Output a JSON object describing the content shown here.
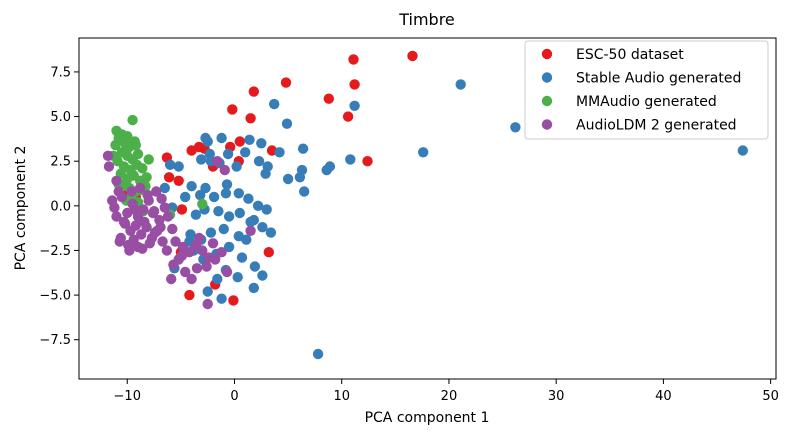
{
  "chart_data": {
    "type": "scatter",
    "title": "Timbre",
    "xlabel": "PCA component 1",
    "ylabel": "PCA component 2",
    "xlim": [
      -14.5,
      50.5
    ],
    "ylim": [
      -9.7,
      9.4
    ],
    "xticks": [
      -10,
      0,
      10,
      20,
      30,
      40,
      50
    ],
    "yticks": [
      -7.5,
      -5.0,
      -2.5,
      0.0,
      2.5,
      5.0,
      7.5
    ],
    "xtick_labels": [
      "−10",
      "0",
      "10",
      "20",
      "30",
      "40",
      "50"
    ],
    "ytick_labels": [
      "−7.5",
      "−5.0",
      "−2.5",
      "0.0",
      "2.5",
      "5.0",
      "7.5"
    ],
    "grid": false,
    "legend_position": "top-right",
    "series": [
      {
        "name": "ESC-50 dataset",
        "color": "#e41a1c",
        "points": [
          [
            16.6,
            8.4
          ],
          [
            11.1,
            8.2
          ],
          [
            11.2,
            6.8
          ],
          [
            4.8,
            6.9
          ],
          [
            1.8,
            6.4
          ],
          [
            8.8,
            6.0
          ],
          [
            -0.2,
            5.4
          ],
          [
            10.6,
            5.0
          ],
          [
            12.4,
            2.5
          ],
          [
            1.5,
            4.9
          ],
          [
            3.5,
            3.1
          ],
          [
            -0.4,
            3.3
          ],
          [
            -2.8,
            3.2
          ],
          [
            -4.0,
            3.1
          ],
          [
            -3.3,
            3.3
          ],
          [
            0.5,
            3.6
          ],
          [
            0.4,
            2.5
          ],
          [
            -2.0,
            2.2
          ],
          [
            -6.3,
            2.7
          ],
          [
            -6.1,
            1.6
          ],
          [
            -5.2,
            1.4
          ],
          [
            -9.9,
            0.7
          ],
          [
            -4.9,
            -0.2
          ],
          [
            -5.0,
            -2.6
          ],
          [
            -9.2,
            0.5
          ],
          [
            3.2,
            -2.6
          ],
          [
            -1.8,
            -4.4
          ],
          [
            -0.1,
            -5.3
          ],
          [
            -4.2,
            -5.0
          ]
        ]
      },
      {
        "name": "Stable Audio generated",
        "color": "#377eb8",
        "points": [
          [
            47.4,
            3.1
          ],
          [
            26.2,
            4.4
          ],
          [
            21.1,
            6.8
          ],
          [
            17.6,
            3.0
          ],
          [
            11.2,
            5.6
          ],
          [
            10.8,
            2.6
          ],
          [
            8.9,
            2.2
          ],
          [
            8.6,
            2.0
          ],
          [
            6.4,
            3.2
          ],
          [
            6.3,
            2.0
          ],
          [
            7.8,
            -8.3
          ],
          [
            4.9,
            4.6
          ],
          [
            3.7,
            5.7
          ],
          [
            4.2,
            3.0
          ],
          [
            3.1,
            2.2
          ],
          [
            2.9,
            1.8
          ],
          [
            5.0,
            1.5
          ],
          [
            6.1,
            1.6
          ],
          [
            6.5,
            0.8
          ],
          [
            2.3,
            2.5
          ],
          [
            1.0,
            3.0
          ],
          [
            0.2,
            2.2
          ],
          [
            1.4,
            3.7
          ],
          [
            2.5,
            3.5
          ],
          [
            -1.2,
            3.8
          ],
          [
            -2.5,
            3.6
          ],
          [
            -0.6,
            2.9
          ],
          [
            -1.4,
            2.4
          ],
          [
            -2.2,
            2.5
          ],
          [
            -3.1,
            2.6
          ],
          [
            -0.7,
            1.2
          ],
          [
            0.4,
            0.7
          ],
          [
            1.3,
            0.4
          ],
          [
            2.2,
            0.0
          ],
          [
            3.0,
            -0.2
          ],
          [
            -0.8,
            0.7
          ],
          [
            -1.9,
            0.5
          ],
          [
            -2.7,
            1.0
          ],
          [
            -3.2,
            0.6
          ],
          [
            -4.0,
            1.1
          ],
          [
            -4.6,
            0.5
          ],
          [
            -3.6,
            -0.5
          ],
          [
            -2.8,
            -0.2
          ],
          [
            -1.5,
            -0.3
          ],
          [
            -0.5,
            -0.6
          ],
          [
            0.5,
            -0.4
          ],
          [
            1.5,
            -0.9
          ],
          [
            2.6,
            -1.2
          ],
          [
            3.4,
            -1.5
          ],
          [
            -1.0,
            -1.3
          ],
          [
            -2.2,
            -1.5
          ],
          [
            -3.1,
            -1.9
          ],
          [
            -4.1,
            -1.6
          ],
          [
            0.4,
            -1.7
          ],
          [
            1.1,
            -1.9
          ],
          [
            -0.5,
            -2.3
          ],
          [
            -1.7,
            -2.7
          ],
          [
            -2.9,
            -3.0
          ],
          [
            -3.8,
            -2.5
          ],
          [
            0.7,
            -2.9
          ],
          [
            1.9,
            -3.4
          ],
          [
            2.6,
            -3.9
          ],
          [
            -0.8,
            -3.6
          ],
          [
            -1.6,
            -4.1
          ],
          [
            0.3,
            -4.0
          ],
          [
            1.8,
            -4.6
          ],
          [
            -1.2,
            -5.2
          ],
          [
            -2.5,
            -4.8
          ],
          [
            -5.6,
            -3.5
          ],
          [
            -5.2,
            2.2
          ],
          [
            -6.0,
            2.3
          ],
          [
            -5.8,
            -0.1
          ],
          [
            -6.5,
            1.0
          ],
          [
            -2.3,
            2.9
          ],
          [
            -2.7,
            3.8
          ],
          [
            -4.2,
            -2.0
          ],
          [
            1.8,
            -0.8
          ]
        ]
      },
      {
        "name": "MMAudio generated",
        "color": "#4daf4a",
        "points": [
          [
            -11.0,
            4.2
          ],
          [
            -10.5,
            4.0
          ],
          [
            -9.5,
            4.8
          ],
          [
            -10.2,
            3.5
          ],
          [
            -10.8,
            3.8
          ],
          [
            -9.8,
            3.3
          ],
          [
            -9.2,
            3.4
          ],
          [
            -10.5,
            3.0
          ],
          [
            -10.0,
            2.8
          ],
          [
            -9.5,
            2.6
          ],
          [
            -9.0,
            2.9
          ],
          [
            -10.9,
            2.5
          ],
          [
            -10.3,
            2.2
          ],
          [
            -9.7,
            2.0
          ],
          [
            -9.1,
            2.3
          ],
          [
            -8.6,
            2.1
          ],
          [
            -10.6,
            1.8
          ],
          [
            -10.0,
            1.5
          ],
          [
            -9.4,
            1.7
          ],
          [
            -8.8,
            1.4
          ],
          [
            -8.2,
            1.6
          ],
          [
            -8.0,
            2.6
          ],
          [
            -10.4,
            1.2
          ],
          [
            -9.8,
            1.0
          ],
          [
            -9.2,
            0.8
          ],
          [
            -8.7,
            0.9
          ],
          [
            -10.1,
            0.3
          ],
          [
            -9.6,
            0.5
          ],
          [
            -11.3,
            2.8
          ],
          [
            -11.1,
            3.4
          ],
          [
            -10.0,
            3.9
          ],
          [
            -9.3,
            3.6
          ],
          [
            -8.3,
            1.1
          ],
          [
            -3.0,
            0.1
          ],
          [
            -8.5,
            -0.3
          ],
          [
            -6.0,
            -0.5
          ],
          [
            -9.0,
            0.2
          ],
          [
            -10.8,
            1.2
          ]
        ]
      },
      {
        "name": "AudioLDM 2 generated",
        "color": "#984ea3",
        "points": [
          [
            -11.8,
            2.8
          ],
          [
            -11.7,
            2.2
          ],
          [
            -11.0,
            1.4
          ],
          [
            -10.8,
            0.8
          ],
          [
            -11.2,
            -0.1
          ],
          [
            -10.5,
            0.5
          ],
          [
            -10.0,
            -0.4
          ],
          [
            -9.5,
            0.1
          ],
          [
            -9.0,
            -0.6
          ],
          [
            -8.5,
            -0.2
          ],
          [
            -8.0,
            0.3
          ],
          [
            -7.5,
            -0.3
          ],
          [
            -7.0,
            -0.8
          ],
          [
            -6.5,
            -0.1
          ],
          [
            -10.2,
            -1.0
          ],
          [
            -9.7,
            -1.4
          ],
          [
            -9.2,
            -1.1
          ],
          [
            -8.7,
            -1.6
          ],
          [
            -8.2,
            -1.2
          ],
          [
            -7.7,
            -1.8
          ],
          [
            -7.2,
            -1.4
          ],
          [
            -6.7,
            -2.0
          ],
          [
            -10.6,
            -1.8
          ],
          [
            -9.9,
            -2.2
          ],
          [
            -9.4,
            -1.9
          ],
          [
            -8.6,
            -2.4
          ],
          [
            -7.9,
            -2.1
          ],
          [
            -11.0,
            -0.6
          ],
          [
            -11.4,
            0.3
          ],
          [
            -9.6,
            0.8
          ],
          [
            -8.8,
            1.0
          ],
          [
            -8.1,
            0.6
          ],
          [
            -7.3,
            0.8
          ],
          [
            -6.8,
            0.4
          ],
          [
            -6.2,
            -0.6
          ],
          [
            -5.8,
            -1.3
          ],
          [
            -5.5,
            -2.0
          ],
          [
            -4.8,
            -2.3
          ],
          [
            -4.2,
            -2.6
          ],
          [
            -3.6,
            -2.2
          ],
          [
            -3.0,
            -2.5
          ],
          [
            -2.4,
            -2.9
          ],
          [
            -5.2,
            -3.0
          ],
          [
            -5.7,
            -3.3
          ],
          [
            -4.6,
            -3.7
          ],
          [
            -3.5,
            -3.5
          ],
          [
            -2.6,
            -3.4
          ],
          [
            -1.8,
            -3.0
          ],
          [
            -1.2,
            -2.6
          ],
          [
            -4.0,
            -4.1
          ],
          [
            -5.9,
            -4.1
          ],
          [
            -2.5,
            -5.5
          ],
          [
            -0.7,
            -3.7
          ],
          [
            -10.3,
            -0.9
          ],
          [
            -9.3,
            -0.2
          ],
          [
            -8.4,
            -0.9
          ],
          [
            -7.6,
            -0.4
          ],
          [
            -6.9,
            -1.2
          ],
          [
            -10.7,
            -2.0
          ],
          [
            -9.8,
            -2.5
          ],
          [
            -9.0,
            -2.3
          ],
          [
            -4.9,
            -2.8
          ],
          [
            -3.3,
            -1.8
          ],
          [
            -2.0,
            -2.1
          ],
          [
            1.5,
            -1.4
          ],
          [
            -1.6,
            2.5
          ],
          [
            -0.9,
            2.0
          ],
          [
            -7.4,
            -1.5
          ],
          [
            -6.3,
            -2.5
          ]
        ]
      }
    ]
  }
}
